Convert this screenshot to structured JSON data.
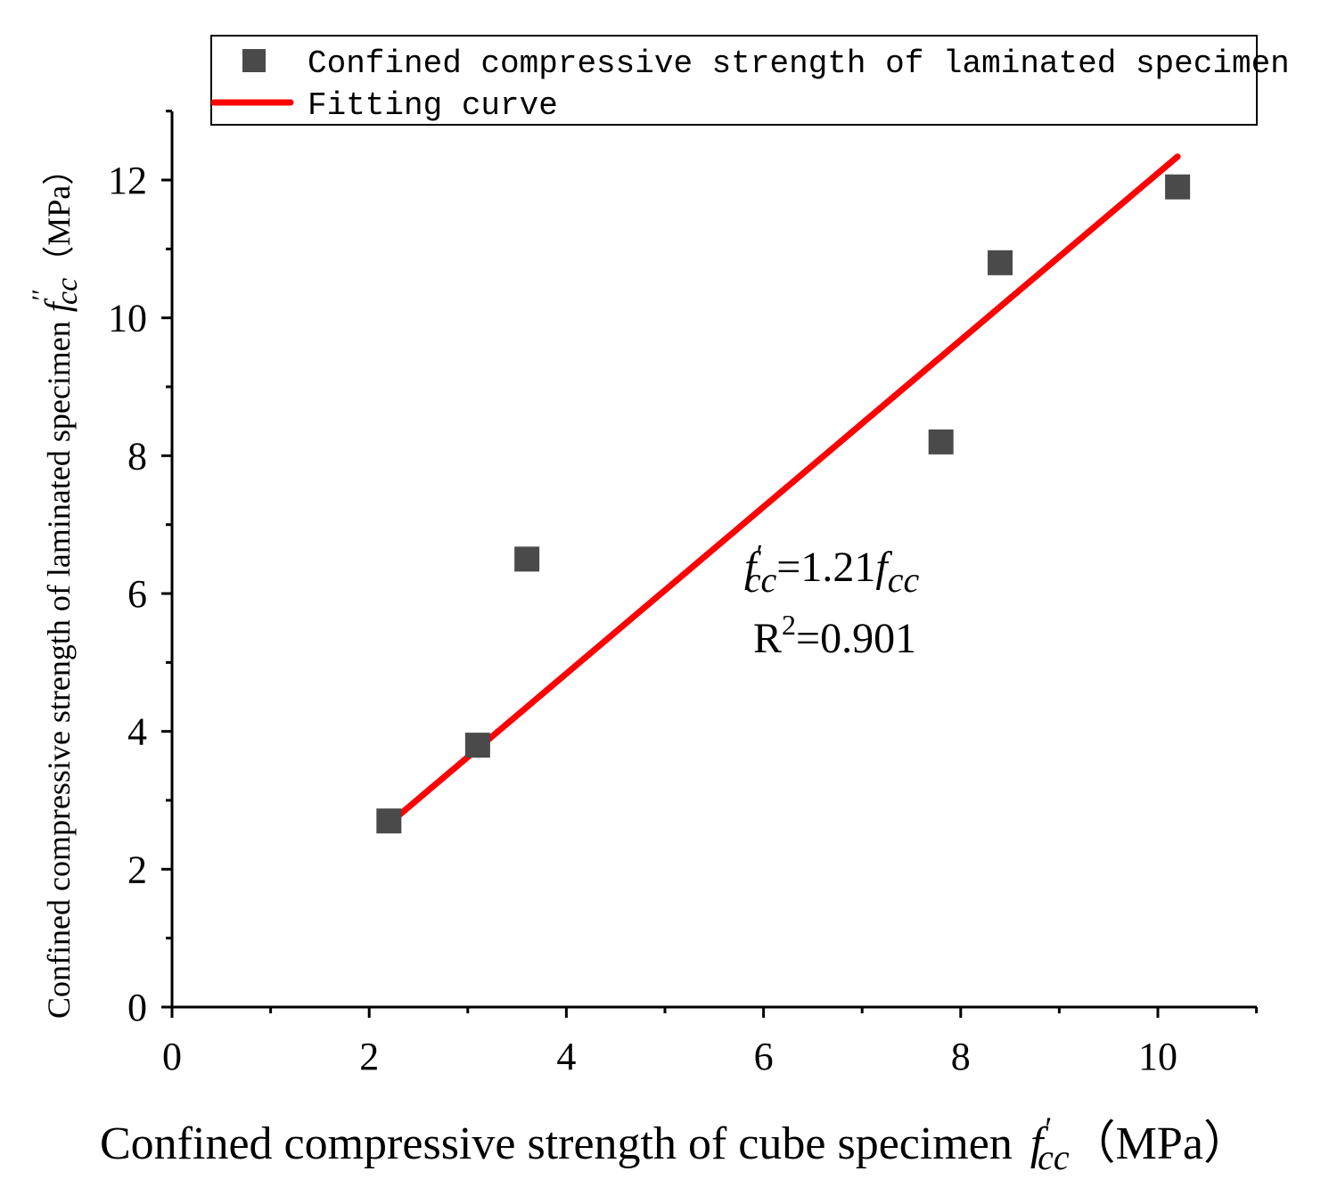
{
  "chart_data": {
    "type": "scatter",
    "title": "",
    "xlabel": {
      "main": "Confined compressive strength of cube specimen",
      "sym_f": "f",
      "sym_prime": "′",
      "sym_sub": "cc",
      "unit": "（MPa）"
    },
    "ylabel": {
      "main": "Confined compressive strength of laminated specimen",
      "sym_f": "f",
      "sym_prime": "′′",
      "sym_sub": "cc",
      "unit": "（MPa）"
    },
    "xlim": [
      0,
      11
    ],
    "ylim": [
      0,
      13
    ],
    "x_major_ticks": [
      0,
      2,
      4,
      6,
      8,
      10
    ],
    "x_tick_labels": [
      "0",
      "2",
      "4",
      "6",
      "8",
      "10"
    ],
    "y_major_ticks": [
      0,
      2,
      4,
      6,
      8,
      10,
      12
    ],
    "y_tick_labels": [
      "0",
      "2",
      "4",
      "6",
      "8",
      "10",
      "12"
    ],
    "grid": false,
    "legend_position": "top",
    "series": [
      {
        "name": "Confined compressive strength of laminated specimen",
        "kind": "scatter",
        "marker": "square",
        "color": "#4a4a4a",
        "x": [
          2.2,
          3.1,
          3.6,
          7.8,
          8.4,
          10.2
        ],
        "y": [
          2.7,
          3.8,
          6.5,
          8.2,
          10.8,
          11.9
        ]
      },
      {
        "name": "Fitting curve",
        "kind": "line",
        "color": "#ff0000",
        "x": [
          2.2,
          10.2
        ],
        "y": [
          2.66,
          12.34
        ]
      }
    ],
    "annotations": {
      "equation": {
        "lhs_f": "f",
        "lhs_prime": "′",
        "lhs_sub": "cc",
        "eq": "=1.21",
        "rhs_f": "f",
        "rhs_sub": "cc"
      },
      "r2": {
        "label": "R",
        "exp": "2",
        "value": "=0.901"
      }
    }
  }
}
